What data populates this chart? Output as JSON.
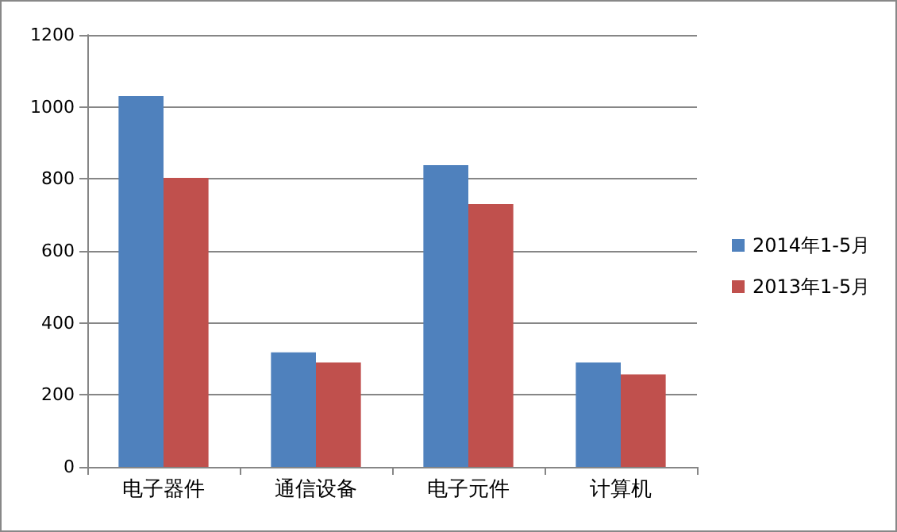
{
  "chart_data": {
    "type": "bar",
    "categories": [
      "电子器件",
      "通信设备",
      "电子元件",
      "计算机"
    ],
    "series": [
      {
        "name": "2014年1-5月",
        "color": "#4f81bd",
        "values": [
          1030,
          318,
          838,
          290
        ]
      },
      {
        "name": "2013年1-5月",
        "color": "#c0504d",
        "values": [
          803,
          290,
          730,
          257
        ]
      }
    ],
    "ylim": [
      0,
      1200
    ],
    "yticks": [
      0,
      200,
      400,
      600,
      800,
      1000,
      1200
    ],
    "grid": "y",
    "legend": "right"
  }
}
